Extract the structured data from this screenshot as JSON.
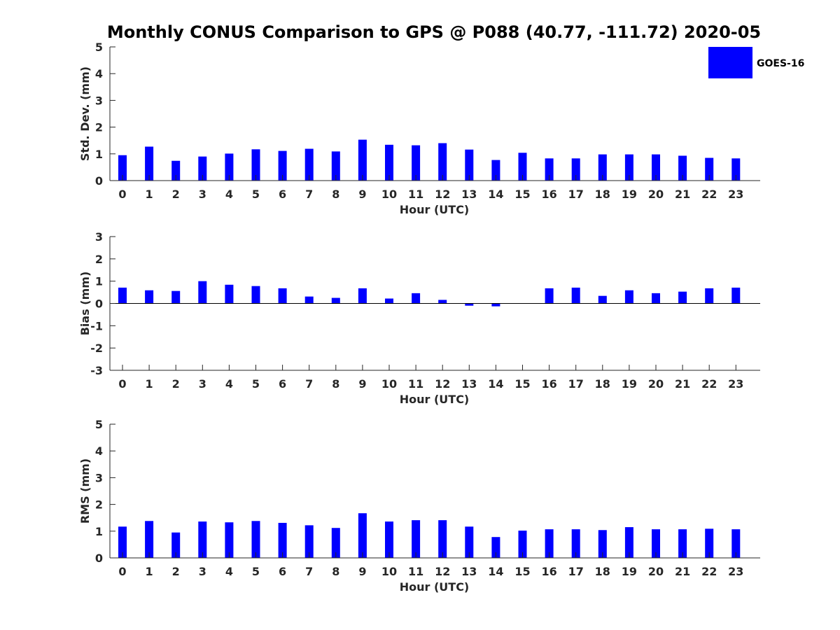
{
  "chart_data": {
    "title": "Monthly CONUS Comparison to GPS @ P088 (40.77, -111.72) 2020-05",
    "legend": {
      "placement": "top-right",
      "entries": [
        "GOES-16"
      ]
    },
    "series_color": "#0000ff",
    "panels": [
      {
        "type": "bar",
        "ylabel": "Std. Dev. (mm)",
        "xlabel": "Hour (UTC)",
        "ylim": [
          0,
          5
        ],
        "yticks": [
          0,
          1,
          2,
          3,
          4,
          5
        ],
        "grid": false,
        "categories": [
          "0",
          "1",
          "2",
          "3",
          "4",
          "5",
          "6",
          "7",
          "8",
          "9",
          "10",
          "11",
          "12",
          "13",
          "14",
          "15",
          "16",
          "17",
          "18",
          "19",
          "20",
          "21",
          "22",
          "23"
        ],
        "series": [
          {
            "name": "GOES-16",
            "values": [
              0.95,
              1.27,
              0.74,
              0.9,
              1.01,
              1.17,
              1.11,
              1.19,
              1.09,
              1.53,
              1.34,
              1.32,
              1.4,
              1.16,
              0.77,
              1.04,
              0.83,
              0.83,
              0.98,
              0.98,
              0.98,
              0.93,
              0.85,
              0.83
            ]
          }
        ]
      },
      {
        "type": "bar",
        "ylabel": "Bias (mm)",
        "xlabel": "Hour (UTC)",
        "ylim": [
          -3,
          3
        ],
        "yticks": [
          -3,
          -2,
          -1,
          0,
          1,
          2,
          3
        ],
        "grid": false,
        "zero_line": true,
        "categories": [
          "0",
          "1",
          "2",
          "3",
          "4",
          "5",
          "6",
          "7",
          "8",
          "9",
          "10",
          "11",
          "12",
          "13",
          "14",
          "15",
          "16",
          "17",
          "18",
          "19",
          "20",
          "21",
          "22",
          "23"
        ],
        "series": [
          {
            "name": "GOES-16",
            "values": [
              0.71,
              0.59,
              0.56,
              1.0,
              0.84,
              0.78,
              0.68,
              0.31,
              0.25,
              0.68,
              0.22,
              0.46,
              0.16,
              -0.1,
              -0.13,
              0.0,
              0.68,
              0.71,
              0.34,
              0.59,
              0.46,
              0.53,
              0.68,
              0.71
            ]
          }
        ]
      },
      {
        "type": "bar",
        "ylabel": "RMS (mm)",
        "xlabel": "Hour (UTC)",
        "ylim": [
          0,
          5
        ],
        "yticks": [
          0,
          1,
          2,
          3,
          4,
          5
        ],
        "grid": false,
        "categories": [
          "0",
          "1",
          "2",
          "3",
          "4",
          "5",
          "6",
          "7",
          "8",
          "9",
          "10",
          "11",
          "12",
          "13",
          "14",
          "15",
          "16",
          "17",
          "18",
          "19",
          "20",
          "21",
          "22",
          "23"
        ],
        "series": [
          {
            "name": "GOES-16",
            "values": [
              1.17,
              1.38,
              0.95,
              1.36,
              1.33,
              1.38,
              1.31,
              1.22,
              1.12,
              1.67,
              1.36,
              1.41,
              1.41,
              1.17,
              0.78,
              1.02,
              1.07,
              1.07,
              1.04,
              1.15,
              1.07,
              1.07,
              1.09,
              1.07
            ]
          }
        ]
      }
    ]
  }
}
